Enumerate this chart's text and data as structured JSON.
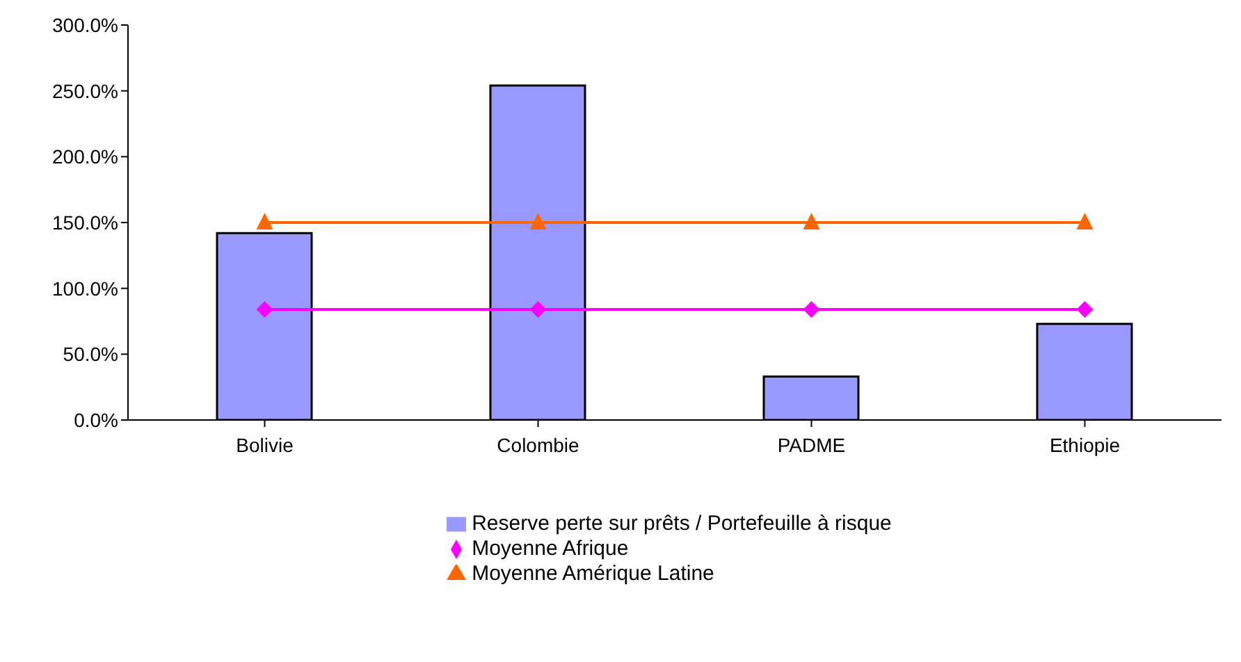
{
  "chart_data": {
    "type": "bar",
    "categories": [
      "Bolivie",
      "Colombie",
      "PADME",
      "Ethiopie"
    ],
    "series": [
      {
        "name": "Reserve perte sur prêts / Portefeuille à risque",
        "color": "#9999ff",
        "values": [
          142,
          254,
          33,
          73
        ]
      },
      {
        "name": "Moyenne Afrique",
        "type": "line",
        "color": "#ff00ff",
        "marker": "diamond",
        "values": [
          84,
          84,
          84,
          84
        ]
      },
      {
        "name": "Moyenne Amérique Latine",
        "type": "line",
        "color": "#ff6600",
        "marker": "triangle",
        "values": [
          150,
          150,
          150,
          150
        ]
      }
    ],
    "ylim": [
      0,
      300
    ],
    "yticks": [
      {
        "value": 0,
        "label": "0.0%"
      },
      {
        "value": 50,
        "label": "50.0%"
      },
      {
        "value": 100,
        "label": "100.0%"
      },
      {
        "value": 150,
        "label": "150.0%"
      },
      {
        "value": 200,
        "label": "200.0%"
      },
      {
        "value": 250,
        "label": "250.0%"
      },
      {
        "value": 300,
        "label": "300.0%"
      }
    ],
    "grid": false,
    "legend": "bottom"
  }
}
